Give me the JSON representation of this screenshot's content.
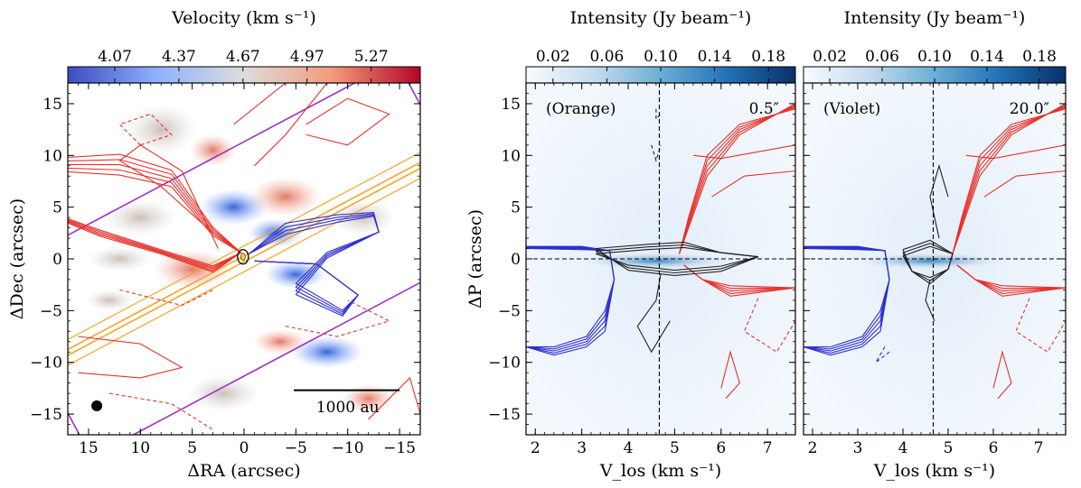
{
  "chart_data": [
    {
      "type": "heatmap",
      "panel": "velocity-map",
      "colorbar": {
        "title": "Velocity (km s⁻¹)",
        "ticks": [
          "4.07",
          "4.37",
          "4.67",
          "4.97",
          "5.27"
        ],
        "tick_values": [
          4.07,
          4.37,
          4.67,
          4.97,
          5.27
        ],
        "range": [
          3.85,
          5.5
        ],
        "colormap": "coolwarm",
        "colors": [
          "#3b4cc0",
          "#8db0fe",
          "#dddddd",
          "#f49a7b",
          "#b40426"
        ]
      },
      "xlabel": "ΔRA (arcsec)",
      "ylabel": "ΔDec (arcsec)",
      "xlim": [
        17,
        -17
      ],
      "ylim": [
        -17,
        17
      ],
      "xticks": [
        15,
        10,
        5,
        0,
        -5,
        -10,
        -15
      ],
      "yticks": [
        -15,
        -10,
        -5,
        0,
        5,
        10,
        15
      ],
      "scale_bar": "1000 au",
      "overlays": {
        "redshifted_contours_color": "#e8312a",
        "blueshifted_contours_color": "#2f2fd0",
        "slit_orange_color": "#f5a623",
        "slit_violet_color": "#9b30c8",
        "slit_orange_pa_deg": 118,
        "slit_orange_width_arcsec": 0.5,
        "slit_violet_width_arcsec": 20.0,
        "slit_half_length_arcsec": 22
      }
    },
    {
      "type": "heatmap",
      "panel": "pv-orange",
      "label": "(Orange)",
      "label_color": "#f5a623",
      "width_label": "0.5″",
      "colorbar": {
        "title": "Intensity (Jy beam⁻¹)",
        "ticks": [
          "0.02",
          "0.06",
          "0.10",
          "0.14",
          "0.18"
        ],
        "tick_values": [
          0.02,
          0.06,
          0.1,
          0.14,
          0.18
        ],
        "range": [
          0.0,
          0.2
        ],
        "colormap": "Blues",
        "colors": [
          "#f7fbff",
          "#c6dbef",
          "#6baed6",
          "#2171b5",
          "#08306b"
        ]
      },
      "xlabel": "V_los (km s⁻¹)",
      "ylabel": "ΔP (arcsec)",
      "xlim": [
        1.8,
        7.6
      ],
      "ylim": [
        -17,
        17
      ],
      "xticks": [
        2,
        3,
        4,
        5,
        6,
        7
      ],
      "yticks": [
        -15,
        -10,
        -5,
        0,
        5,
        10,
        15
      ],
      "v_sys": 4.67
    },
    {
      "type": "heatmap",
      "panel": "pv-violet",
      "label": "(Violet)",
      "label_color": "#9b30c8",
      "width_label": "20.0″",
      "colorbar": {
        "title": "Intensity (Jy beam⁻¹)",
        "ticks": [
          "0.02",
          "0.06",
          "0.10",
          "0.14",
          "0.18"
        ],
        "tick_values": [
          0.02,
          0.06,
          0.1,
          0.14,
          0.18
        ],
        "range": [
          0.0,
          0.2
        ],
        "colormap": "Blues",
        "colors": [
          "#f7fbff",
          "#c6dbef",
          "#6baed6",
          "#2171b5",
          "#08306b"
        ]
      },
      "xlabel": "V_los (km s⁻¹)",
      "xlim": [
        1.8,
        7.6
      ],
      "ylim": [
        -17,
        17
      ],
      "xticks": [
        2,
        3,
        4,
        5,
        6,
        7
      ],
      "yticks": [
        -15,
        -10,
        -5,
        0,
        5,
        10,
        15
      ],
      "v_sys": 4.67
    }
  ]
}
